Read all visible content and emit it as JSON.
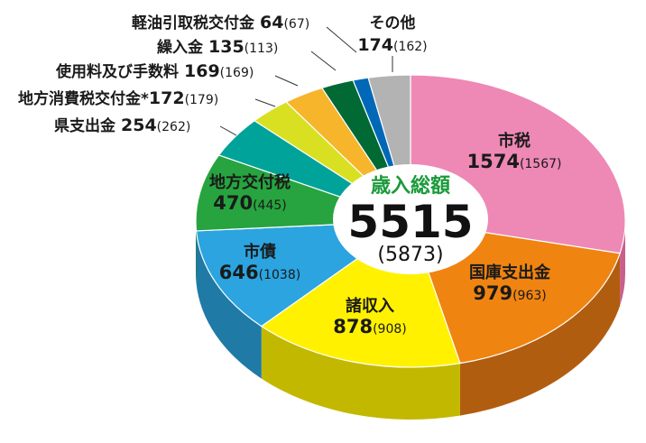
{
  "chart_data": {
    "type": "pie",
    "center": {
      "title": "歳入総額",
      "total": "5515",
      "previous": "(5873)"
    },
    "slices": [
      {
        "name": "市税",
        "value": 1574,
        "previous": 1567,
        "color": "#ee88b5",
        "side": "#c85f8d"
      },
      {
        "name": "国庫支出金",
        "value": 979,
        "previous": 963,
        "color": "#f08411",
        "side": "#b15d10"
      },
      {
        "name": "諸収入",
        "value": 878,
        "previous": 908,
        "color": "#fff100",
        "side": "#c2b800"
      },
      {
        "name": "市債",
        "value": 646,
        "previous": 1038,
        "color": "#2ba4e0",
        "side": "#1f7aa6"
      },
      {
        "name": "地方交付税",
        "value": 470,
        "previous": 445,
        "color": "#27a43f",
        "side": "#1b7a2f"
      },
      {
        "name": "県支出金",
        "value": 254,
        "previous": 262,
        "color": "#00a39a",
        "side": "#007a73"
      },
      {
        "name": "地方消費税交付金",
        "value": 172,
        "previous": 179,
        "color": "#d9e021",
        "side": "#a4a816",
        "marker": "*"
      },
      {
        "name": "使用料及び手数料",
        "value": 169,
        "previous": 169,
        "color": "#f7b52c",
        "side": "#b98520"
      },
      {
        "name": "繰入金",
        "value": 135,
        "previous": 113,
        "color": "#006934",
        "side": "#004d26"
      },
      {
        "name": "軽油引取税交付金",
        "value": 64,
        "previous": 67,
        "color": "#0068b7",
        "side": "#004e8a"
      },
      {
        "name": "その他",
        "value": 174,
        "previous": 162,
        "color": "#b3b3b3",
        "side": "#888888"
      }
    ],
    "colors": {
      "center_title": "#1a9a3a",
      "marker": "#e4007f"
    }
  }
}
